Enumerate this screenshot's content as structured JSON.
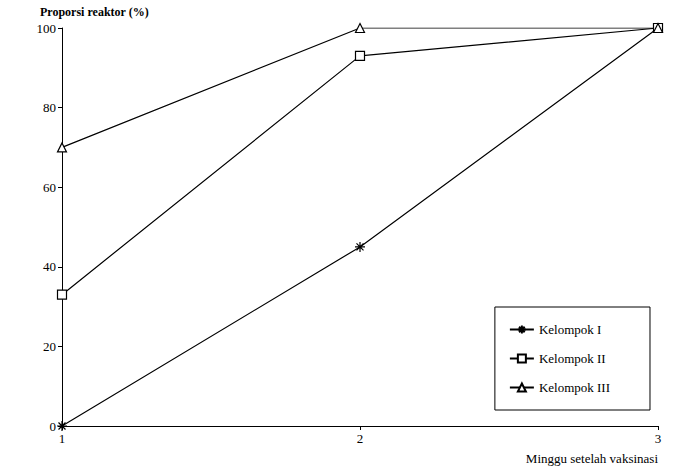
{
  "chart_data": {
    "type": "line",
    "y_label": "Proporsi reaktor (%)",
    "x_label": "Minggu setelah vaksinasi",
    "x": [
      1,
      2,
      3
    ],
    "xlim": [
      1,
      3
    ],
    "xticks": [
      1,
      2,
      3
    ],
    "ylim": [
      0,
      100
    ],
    "yticks": [
      0,
      20,
      40,
      60,
      80,
      100
    ],
    "grid": false,
    "legend": "lower right",
    "series": [
      {
        "name": "Kelompok I",
        "color": "#000000",
        "marker": "asterisk",
        "values": [
          0,
          45,
          100
        ]
      },
      {
        "name": "Kelompok II",
        "color": "#000000",
        "marker": "square",
        "values": [
          33,
          93,
          100
        ]
      },
      {
        "name": "Kelompok III",
        "color": "#000000",
        "marker": "triangle",
        "values": [
          70,
          100,
          100
        ]
      }
    ]
  }
}
